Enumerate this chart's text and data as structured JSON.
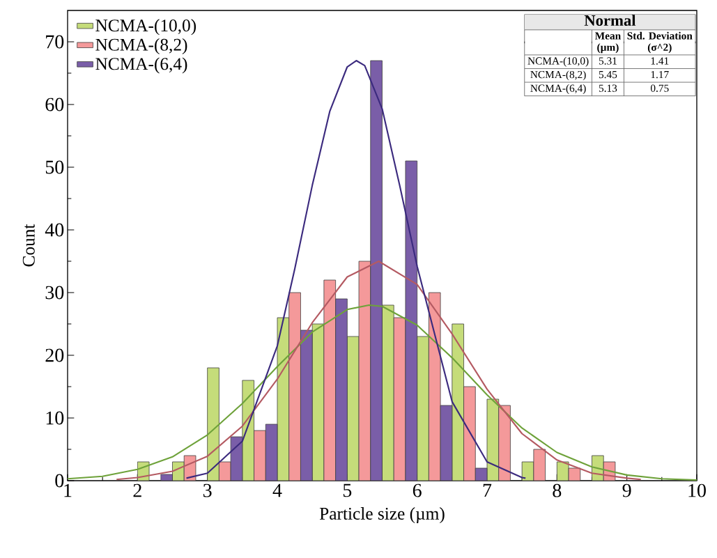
{
  "chart_data": {
    "type": "histogram",
    "xlabel": "Particle size (µm)",
    "ylabel": "Count",
    "bins": [
      2.0,
      2.5,
      3.0,
      3.5,
      4.0,
      4.5,
      5.0,
      5.5,
      6.0,
      6.5,
      7.0,
      7.5,
      8.0,
      8.5,
      9.0
    ],
    "series": [
      {
        "name": "NCMA-(10,0)",
        "color": "#c5dc7a",
        "values": [
          3,
          3,
          18,
          16,
          26,
          25,
          23,
          28,
          23,
          25,
          13,
          3,
          3,
          4
        ]
      },
      {
        "name": "NCMA-(8,2)",
        "color": "#f4999a",
        "values": [
          0,
          4,
          3,
          8,
          30,
          32,
          35,
          26,
          30,
          15,
          12,
          5,
          2,
          3
        ]
      },
      {
        "name": "NCMA-(6,4)",
        "color": "#7a5ea8",
        "values": [
          1,
          0,
          7,
          9,
          24,
          29,
          67,
          51,
          12,
          2,
          0,
          0,
          0,
          0
        ]
      },
      {
        "type": "line",
        "color": "#6ea23a",
        "x": [
          1,
          1.5,
          2,
          2.5,
          3,
          3.5,
          4,
          4.5,
          5,
          5.31,
          5.5,
          6,
          6.5,
          7,
          7.5,
          8,
          8.5,
          9,
          9.5,
          10
        ],
        "values": [
          0.3,
          0.7,
          1.8,
          3.8,
          7.3,
          12.3,
          18.2,
          23.7,
          27.3,
          28,
          27.8,
          24.8,
          19.6,
          13.7,
          8.4,
          4.5,
          2.2,
          0.9,
          0.3,
          0.1
        ]
      },
      {
        "type": "line",
        "color": "#b45a62",
        "x": [
          1.7,
          2,
          2.5,
          3,
          3.5,
          4,
          4.5,
          5,
          5.45,
          6,
          6.5,
          7,
          7.5,
          8,
          8.5,
          9,
          9.2
        ],
        "values": [
          0.2,
          0.5,
          1.5,
          3.9,
          8.7,
          16.2,
          25.2,
          32.5,
          35,
          31.3,
          23.4,
          14.6,
          7.5,
          3.3,
          1.2,
          0.4,
          0.2
        ]
      },
      {
        "type": "line",
        "color": "#3b2a7e",
        "x": [
          2.7,
          3,
          3.5,
          4,
          4.25,
          4.5,
          4.75,
          5,
          5.13,
          5.25,
          5.5,
          5.75,
          6,
          6.5,
          7,
          7.5,
          7.55
        ],
        "values": [
          0.4,
          1.2,
          6.3,
          21.5,
          33.8,
          47.1,
          58.9,
          66,
          67,
          66.2,
          59.3,
          47.1,
          34.2,
          12.6,
          3,
          0.5,
          0.4
        ]
      }
    ],
    "xlim": [
      1,
      10
    ],
    "ylim": [
      0,
      75
    ],
    "xticks": [
      1,
      2,
      3,
      4,
      5,
      6,
      7,
      8,
      9,
      10
    ],
    "yticks": [
      0,
      10,
      20,
      30,
      40,
      50,
      60,
      70
    ],
    "legend": "top left",
    "annotations": [
      "Normal",
      "Mean",
      "(µm)",
      "Std. Deviation",
      "(σ^2)",
      "NCMA-(10,0)",
      "5.31",
      "1.41",
      "NCMA-(8,2)",
      "5.45",
      "1.17",
      "NCMA-(6,4)",
      "5.13",
      "0.75"
    ]
  }
}
